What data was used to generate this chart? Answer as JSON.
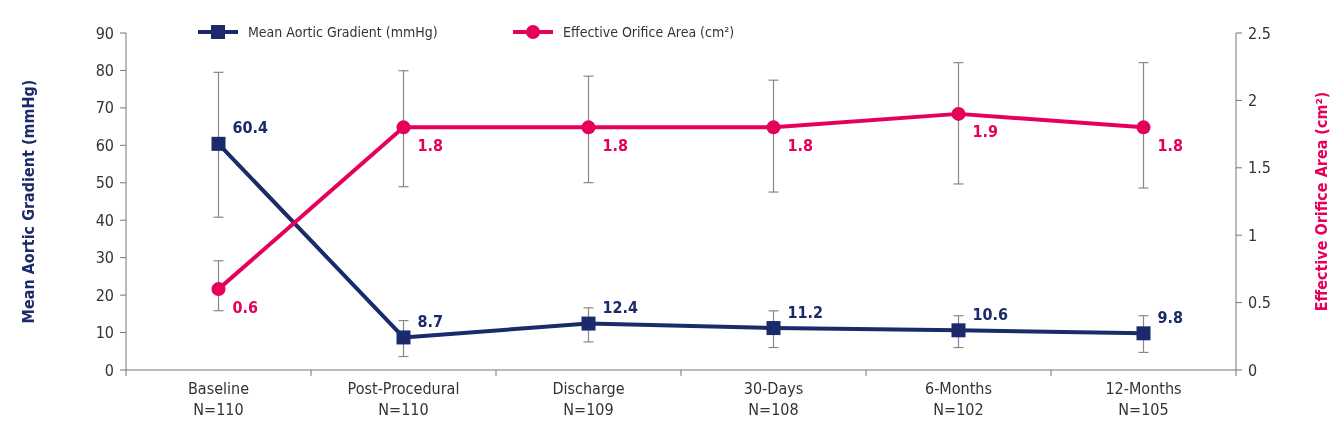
{
  "chart_data": {
    "type": "line",
    "ylabel": "Mean Aortic Gradient (mmHg)",
    "y2label": "Effective Orifice Area (cm²)",
    "categories": [
      "Baseline\nN=110",
      "Post-Procedural\nN=110",
      "Discharge\nN=109",
      "30-Days\nN=108",
      "6-Months\nN=102",
      "12-Months\nN=105"
    ],
    "series": [
      {
        "name": "Mean Aortic Gradient (mmHg)",
        "color": "#1b2a6b",
        "marker": "square",
        "values": [
          60.4,
          8.7,
          12.4,
          11.2,
          10.6,
          9.8
        ],
        "errors": [
          [
            40.8,
            79.5
          ],
          [
            3.6,
            13.2
          ],
          [
            7.5,
            16.6
          ],
          [
            6.0,
            15.8
          ],
          [
            6.0,
            14.5
          ],
          [
            4.7,
            14.5
          ]
        ]
      },
      {
        "name": "Effective Orifice Area (cm²)",
        "color": "#e5005c",
        "marker": "circle",
        "axis": "y2",
        "values": [
          0.6,
          1.8,
          1.8,
          1.8,
          1.9,
          1.8
        ],
        "errors": [
          [
            0.44,
            0.81
          ],
          [
            1.36,
            2.22
          ],
          [
            1.39,
            2.18
          ],
          [
            1.32,
            2.15
          ],
          [
            1.38,
            2.28
          ],
          [
            1.35,
            2.28
          ]
        ]
      }
    ],
    "ylim": [
      0,
      90
    ],
    "yticks": [
      0,
      10,
      20,
      30,
      40,
      50,
      60,
      70,
      80,
      90
    ],
    "y2lim": [
      0,
      2.5
    ],
    "y2ticks": [
      0,
      0.5,
      1,
      1.5,
      2,
      2.5
    ],
    "data_labels": true,
    "legend": "top",
    "grid": false,
    "line_style": "solid"
  }
}
